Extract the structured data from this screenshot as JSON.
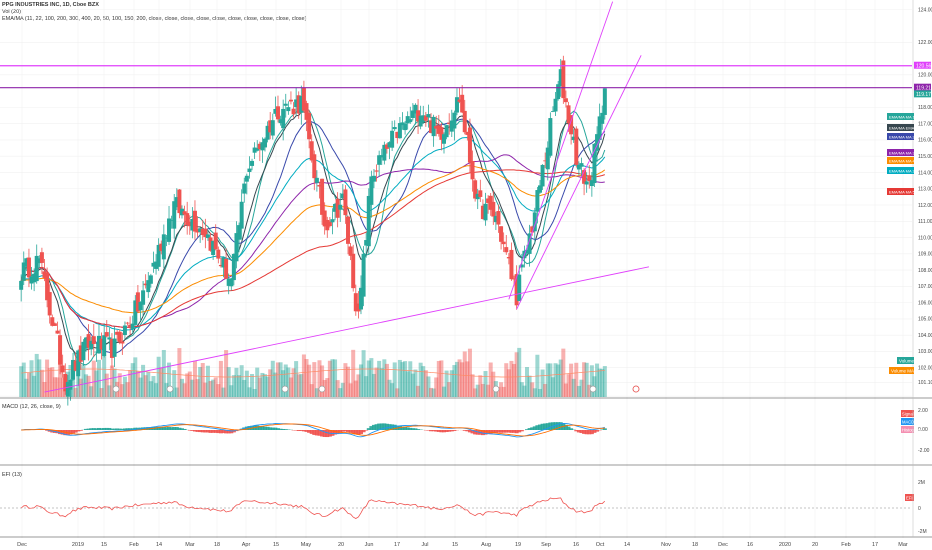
{
  "header": {
    "title": "PPG INDUSTRIES INC, 1D, Cboe BZX",
    "vol": "Vol (20)",
    "ema": "EMA/MA (11, 22, 100, 200, 300, 400, 20, 50, 100, 150, 200, close, close, close, close, close, close, close, close, close, close)"
  },
  "colors": {
    "up": "#26a69a",
    "down": "#ef5350",
    "pink": "#e040fb",
    "purple": "#8e24aa",
    "orange": "#fb8c00",
    "teal": "#00acc1",
    "red": "#e53935",
    "green": "#4caf50"
  },
  "chart_data": [
    {
      "type": "candlestick",
      "panel": "price",
      "y_axis": {
        "min": 100.2,
        "max": 124.6,
        "ticks": [
          "124.00",
          "122.00",
          "120.00",
          "118.00",
          "117.00",
          "116.00",
          "115.00",
          "114.00",
          "113.00",
          "112.00",
          "111.00",
          "110.00",
          "109.00",
          "108.00",
          "107.00",
          "106.00",
          "105.00",
          "104.00",
          "103.00",
          "102.00",
          "101.10",
          "100.25"
        ]
      },
      "x_axis": {
        "ticks": [
          "Dec",
          "2019",
          "15",
          "Feb",
          "14",
          "Mar",
          "18",
          "Apr",
          "15",
          "May",
          "20",
          "Jun",
          "17",
          "Jul",
          "15",
          "Aug",
          "19",
          "Sep",
          "16",
          "Oct",
          "14",
          "Nov",
          "18",
          "Dec",
          "16",
          "2020",
          "20",
          "Feb",
          "17",
          "Mar"
        ]
      },
      "horizontal_lines": [
        {
          "value": 120.56,
          "label": "120.56",
          "color": "#e040fb"
        },
        {
          "value": 119.21,
          "label": "119.21",
          "color": "#8e24aa"
        },
        {
          "value": 119.17,
          "label": "119.17",
          "color": "#26a69a"
        }
      ],
      "trendlines": [
        {
          "x1": "2018-12-12",
          "y1": 100.5,
          "x2": "2019-11-04",
          "y2": 108.2,
          "color": "#e040fb"
        },
        {
          "x1": "2019-08-20",
          "y1": 106.2,
          "x2": "2019-10-15",
          "y2": 124.5,
          "color": "#e040fb"
        },
        {
          "x1": "2019-08-23",
          "y1": 105.6,
          "x2": "2019-10-30",
          "y2": 121.2,
          "color": "#e040fb"
        }
      ],
      "anchor_points": [
        {
          "date": "2018-11-29",
          "close": 107.9
        },
        {
          "date": "2018-12-10",
          "close": 108.6
        },
        {
          "date": "2018-12-24",
          "close": 101.2
        },
        {
          "date": "2019-01-04",
          "close": 103.5
        },
        {
          "date": "2019-01-18",
          "close": 103.2
        },
        {
          "date": "2019-02-01",
          "close": 106.0
        },
        {
          "date": "2019-02-20",
          "close": 112.0
        },
        {
          "date": "2019-03-08",
          "close": 110.4
        },
        {
          "date": "2019-03-22",
          "close": 107.3
        },
        {
          "date": "2019-04-01",
          "close": 114.2
        },
        {
          "date": "2019-04-17",
          "close": 117.9
        },
        {
          "date": "2019-04-30",
          "close": 118.3
        },
        {
          "date": "2019-05-13",
          "close": 110.8
        },
        {
          "date": "2019-05-22",
          "close": 112.3
        },
        {
          "date": "2019-05-30",
          "close": 104.9
        },
        {
          "date": "2019-06-06",
          "close": 113.8
        },
        {
          "date": "2019-06-20",
          "close": 116.5
        },
        {
          "date": "2019-07-03",
          "close": 118.0
        },
        {
          "date": "2019-07-12",
          "close": 116.3
        },
        {
          "date": "2019-07-24",
          "close": 118.6
        },
        {
          "date": "2019-08-02",
          "close": 112.0
        },
        {
          "date": "2019-08-13",
          "close": 111.3
        },
        {
          "date": "2019-08-23",
          "close": 106.5
        },
        {
          "date": "2019-09-03",
          "close": 111.5
        },
        {
          "date": "2019-09-13",
          "close": 118.5
        },
        {
          "date": "2019-09-17",
          "close": 119.8
        },
        {
          "date": "2019-09-26",
          "close": 114.3
        },
        {
          "date": "2019-10-02",
          "close": 113.2
        },
        {
          "date": "2019-10-08",
          "close": 117.0
        },
        {
          "date": "2019-10-10",
          "close": 119.17
        }
      ],
      "overlays": [
        {
          "label": "EMA/MA MA 1",
          "color": "#26a69a"
        },
        {
          "label": "EMA/MA EMA 1",
          "color": "#37474f"
        },
        {
          "label": "EMA/MA MA 2",
          "color": "#3949ab"
        },
        {
          "label": "EMA/MA MA 3",
          "color": "#8e24aa"
        },
        {
          "label": "EMA/MA MA 4",
          "color": "#fb8c00"
        },
        {
          "label": "EMA/MA MA 2",
          "color": "#00acc1"
        },
        {
          "label": "EMA/MA MA 5",
          "color": "#e53935"
        }
      ],
      "volume_labels": [
        "Volume",
        "Volume MA"
      ]
    },
    {
      "type": "line",
      "panel": "macd",
      "title": "MACD (12, 26, close, 9)",
      "y_ticks": [
        "2.00",
        "0.00",
        "-2.00"
      ],
      "series_labels": [
        "Signal",
        "MACD",
        "Histogram"
      ]
    },
    {
      "type": "line",
      "panel": "efi",
      "title": "EFI (13)",
      "y_ticks": [
        "2M",
        "0",
        "-2M"
      ],
      "last_label": "EFI"
    }
  ]
}
